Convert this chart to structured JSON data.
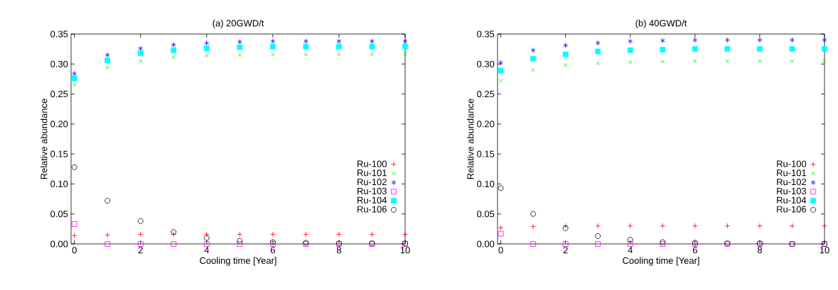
{
  "chart_data": [
    {
      "type": "scatter",
      "title": "(a) 20GWD/t",
      "xlabel": "Cooling time [Year]",
      "ylabel": "Relative abundance",
      "x": [
        0,
        1,
        2,
        3,
        4,
        5,
        6,
        7,
        8,
        9,
        10
      ],
      "xlim": [
        -0.1,
        10
      ],
      "ylim": [
        0,
        0.35
      ],
      "xticks": [
        0,
        2,
        4,
        6,
        8,
        10
      ],
      "yticks": [
        {
          "value": 0,
          "label": "0.00"
        },
        {
          "value": 0.05,
          "label": "0.05"
        },
        {
          "value": 0.1,
          "label": "0.10"
        },
        {
          "value": 0.15,
          "label": "0.15"
        },
        {
          "value": 0.2,
          "label": "0.20"
        },
        {
          "value": 0.25,
          "label": "0.25"
        },
        {
          "value": 0.3,
          "label": "0.30"
        },
        {
          "value": 0.35,
          "label": "0.35"
        }
      ],
      "grid": false,
      "legend": "bottom right",
      "series": [
        {
          "name": "Ru-100",
          "color": "#ff0000",
          "marker": "plus",
          "values": [
            0.014,
            0.015,
            0.016,
            0.016,
            0.016,
            0.016,
            0.016,
            0.016,
            0.016,
            0.016,
            0.016
          ]
        },
        {
          "name": "Ru-101",
          "color": "#00ee00",
          "marker": "cross",
          "values": [
            0.265,
            0.294,
            0.305,
            0.311,
            0.314,
            0.315,
            0.316,
            0.316,
            0.316,
            0.316,
            0.317
          ]
        },
        {
          "name": "Ru-102",
          "color": "#0000ff",
          "values": [
            0.284,
            0.315,
            0.326,
            0.332,
            0.335,
            0.337,
            0.338,
            0.338,
            0.338,
            0.338,
            0.338
          ]
        },
        {
          "name": "Ru-103",
          "color": "#ff00ff",
          "marker": "square",
          "values": [
            0.033,
            0,
            0,
            0,
            0,
            0,
            0,
            0,
            0,
            0,
            0
          ]
        },
        {
          "name": "Ru-104",
          "color": "#00ffff",
          "values": [
            0.276,
            0.306,
            0.318,
            0.323,
            0.326,
            0.328,
            0.329,
            0.329,
            0.329,
            0.329,
            0.329
          ]
        },
        {
          "name": "Ru-106",
          "color": "#000000",
          "marker": "circle",
          "values": [
            0.128,
            0.072,
            0.038,
            0.02,
            0.01,
            0.005,
            0.003,
            0.002,
            0.001,
            0.001,
            0.001
          ]
        }
      ]
    },
    {
      "type": "scatter",
      "title": "(b) 40GWD/t",
      "xlabel": "Cooling time [Year]",
      "ylabel": "Relative abundance",
      "x": [
        0,
        1,
        2,
        3,
        4,
        5,
        6,
        7,
        8,
        9,
        10
      ],
      "xlim": [
        -0.1,
        10
      ],
      "ylim": [
        0,
        0.35
      ],
      "xticks": [
        0,
        2,
        4,
        6,
        8,
        10
      ],
      "yticks": [
        {
          "value": 0,
          "label": "0.00"
        },
        {
          "value": 0.05,
          "label": "0.05"
        },
        {
          "value": 0.1,
          "label": "0.10"
        },
        {
          "value": 0.15,
          "label": "0.15"
        },
        {
          "value": 0.2,
          "label": "0.20"
        },
        {
          "value": 0.25,
          "label": "0.25"
        },
        {
          "value": 0.3,
          "label": "0.30"
        },
        {
          "value": 0.35,
          "label": "0.35"
        }
      ],
      "grid": false,
      "legend": "bottom right",
      "series": [
        {
          "name": "Ru-100",
          "color": "#ff0000",
          "marker": "plus",
          "values": [
            0.027,
            0.029,
            0.03,
            0.03,
            0.03,
            0.03,
            0.03,
            0.03,
            0.03,
            0.03,
            0.03
          ]
        },
        {
          "name": "Ru-101",
          "color": "#00ee00",
          "marker": "cross",
          "values": [
            0.272,
            0.29,
            0.298,
            0.301,
            0.303,
            0.304,
            0.305,
            0.305,
            0.305,
            0.305,
            0.305
          ]
        },
        {
          "name": "Ru-102",
          "color": "#0000ff",
          "values": [
            0.302,
            0.323,
            0.331,
            0.335,
            0.338,
            0.339,
            0.34,
            0.34,
            0.34,
            0.34,
            0.34
          ]
        },
        {
          "name": "Ru-103",
          "color": "#ff00ff",
          "marker": "square",
          "values": [
            0.017,
            0,
            0,
            0,
            0,
            0,
            0,
            0,
            0,
            0,
            0
          ]
        },
        {
          "name": "Ru-104",
          "color": "#00ffff",
          "values": [
            0.289,
            0.309,
            0.316,
            0.321,
            0.323,
            0.324,
            0.325,
            0.325,
            0.325,
            0.325,
            0.325
          ]
        },
        {
          "name": "Ru-106",
          "color": "#000000",
          "marker": "circle",
          "values": [
            0.093,
            0.05,
            0.026,
            0.013,
            0.007,
            0.003,
            0.002,
            0.001,
            0.001,
            0,
            0
          ]
        }
      ]
    }
  ]
}
